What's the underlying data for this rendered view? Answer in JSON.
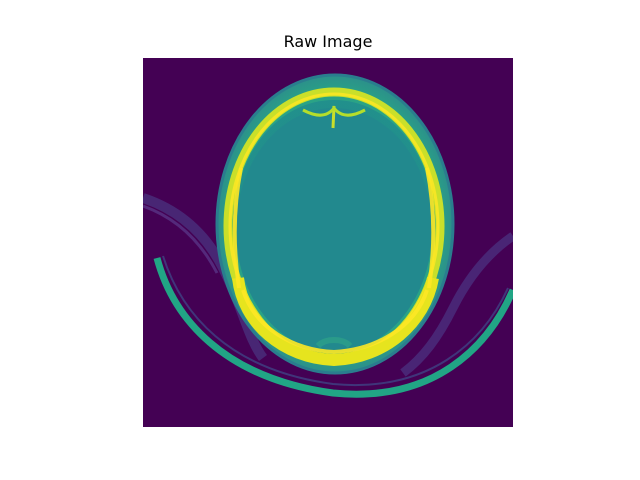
{
  "figure": {
    "title": "Raw Image"
  },
  "colors": {
    "background": "#440154",
    "soft_tissue": "#238a8d",
    "scalp": "#29aa87",
    "bone": "#e6e41e",
    "bone_bright": "#fde725",
    "table_support": "#21a585",
    "faint_structure": "#5b3b8c"
  }
}
